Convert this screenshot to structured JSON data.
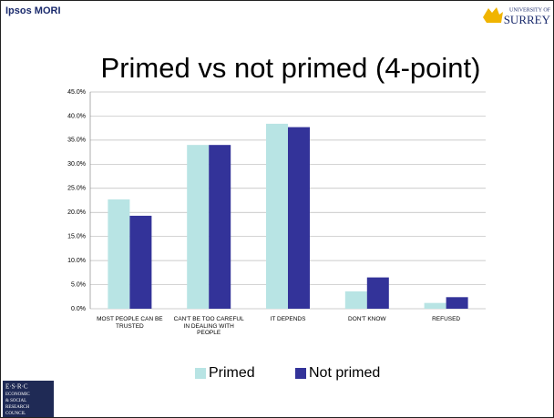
{
  "header": {
    "brand": "Ipsos MORI",
    "logo_right": [
      "UNIVERSITY OF",
      "SURREY"
    ],
    "logo_left": [
      "E·S·R·C",
      "ECONOMIC",
      "& SOCIAL",
      "RESEARCH",
      "COUNCIL"
    ]
  },
  "chart_data": {
    "type": "bar",
    "title": "Primed vs not primed (4-point)",
    "categories": [
      "MOST PEOPLE CAN BE TRUSTED",
      "CAN'T BE TOO CAREFUL IN DEALING WITH PEOPLE",
      "IT DEPENDS",
      "DON'T KNOW",
      "REFUSED"
    ],
    "series": [
      {
        "name": "Primed",
        "color": "#b8e4e4",
        "values": [
          22.7,
          34.0,
          38.4,
          3.6,
          1.2
        ]
      },
      {
        "name": "Not primed",
        "color": "#333399",
        "values": [
          19.3,
          34.0,
          37.7,
          6.5,
          2.4
        ]
      }
    ],
    "ylim": [
      0,
      45
    ],
    "yticks": [
      {
        "value": 0,
        "label": "0.0%"
      },
      {
        "value": 5,
        "label": "5.0%"
      },
      {
        "value": 10,
        "label": "10.0%"
      },
      {
        "value": 15,
        "label": "15.0%"
      },
      {
        "value": 20,
        "label": "20.0%"
      },
      {
        "value": 25,
        "label": "25.0%"
      },
      {
        "value": 30,
        "label": "30.0%"
      },
      {
        "value": 35,
        "label": "35.0%"
      },
      {
        "value": 40,
        "label": "40.0%"
      },
      {
        "value": 45,
        "label": "45.0%"
      }
    ],
    "grid": true,
    "legend": "bottom"
  }
}
